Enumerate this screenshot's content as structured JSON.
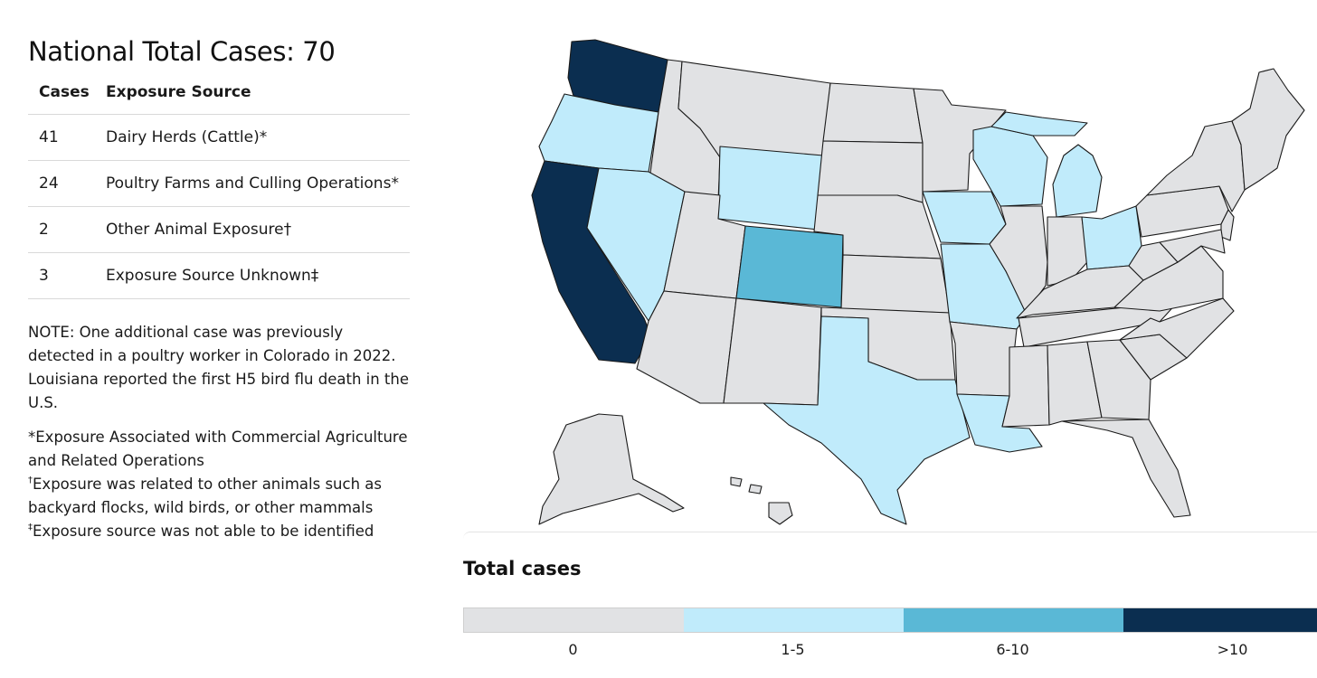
{
  "title": "National Total Cases: 70",
  "table": {
    "headers": [
      "Cases",
      "Exposure Source"
    ],
    "rows": [
      {
        "cases": "41",
        "source": "Dairy Herds (Cattle)*"
      },
      {
        "cases": "24",
        "source": "Poultry Farms and Culling Operations*"
      },
      {
        "cases": "2",
        "source": "Other Animal Exposure†"
      },
      {
        "cases": "3",
        "source": "Exposure Source Unknown‡"
      }
    ]
  },
  "note": "NOTE: One additional case was previously detected in a poultry worker in Colorado in 2022. Louisiana reported the first H5 bird flu death in the U.S.",
  "footnotes": [
    {
      "marker": "",
      "text": "*Exposure Associated with Commercial Agriculture and Related Operations"
    },
    {
      "marker": "†",
      "text": "Exposure was related to other animals such as backyard flocks, wild birds, or other mammals"
    },
    {
      "marker": "‡",
      "text": "Exposure source was not able to be identified"
    }
  ],
  "legend": {
    "title": "Total cases",
    "bins": [
      {
        "label": "0",
        "color": "#e1e2e4"
      },
      {
        "label": "1-5",
        "color": "#c0ebfb"
      },
      {
        "label": "6-10",
        "color": "#5ab8d6"
      },
      {
        "label": ">10",
        "color": "#0b2e50"
      }
    ]
  },
  "map": {
    "default_category": "0",
    "state_categories": {
      "WA": ">10",
      "CA": ">10",
      "CO": "6-10",
      "OR": "1-5",
      "NV": "1-5",
      "WY": "1-5",
      "IA": "1-5",
      "MO": "1-5",
      "WI": "1-5",
      "MI": "1-5",
      "OH": "1-5",
      "TX": "1-5",
      "LA": "1-5"
    }
  }
}
